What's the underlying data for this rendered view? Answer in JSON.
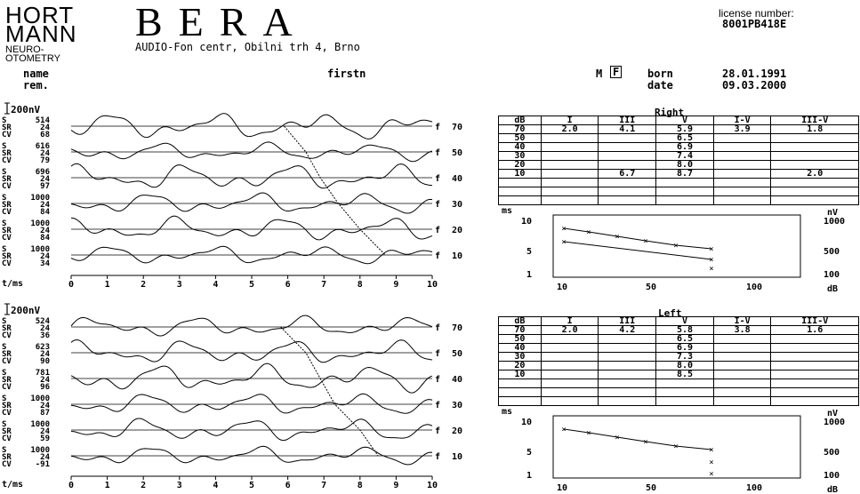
{
  "header": {
    "logo_line1": "HORT",
    "logo_line2": "MANN",
    "logo_line3": "NEURO-",
    "logo_line4": "OTOMETRY",
    "title": "BERA",
    "address": "AUDIO-Fon centr, Obilni trh 4, Brno",
    "license_label": "license number:",
    "license_number": "8001PB418E"
  },
  "patient": {
    "name_label": "name",
    "rem_label": "rem.",
    "name_value": "firstn",
    "sex_m": "M",
    "sex_f": "F",
    "born_label": "born",
    "born_value": "28.01.1991",
    "date_label": "date",
    "date_value": "09.03.2000"
  },
  "right": {
    "panel_title": "Right",
    "scale_label": "200nV",
    "time_label": "t/ms",
    "x_ticks": [
      "0",
      "1",
      "2",
      "3",
      "4",
      "5",
      "6",
      "7",
      "8",
      "9",
      "10"
    ],
    "traces": [
      {
        "s": "514",
        "sr": "24",
        "cv": "68",
        "level": "70"
      },
      {
        "s": "616",
        "sr": "24",
        "cv": "79",
        "level": "50"
      },
      {
        "s": "696",
        "sr": "24",
        "cv": "97",
        "level": "40"
      },
      {
        "s": "1000",
        "sr": "24",
        "cv": "84",
        "level": "30"
      },
      {
        "s": "1000",
        "sr": "24",
        "cv": "84",
        "level": "20"
      },
      {
        "s": "1000",
        "sr": "24",
        "cv": "34",
        "level": "10"
      }
    ],
    "table_headers": [
      "dB",
      "I",
      "III",
      "V",
      "I-V",
      "III-V"
    ],
    "table_rows": [
      [
        "70",
        "2.0",
        "4.1",
        "5.9",
        "3.9",
        "1.8"
      ],
      [
        "50",
        "",
        "",
        "6.5",
        "",
        ""
      ],
      [
        "40",
        "",
        "",
        "6.9",
        "",
        ""
      ],
      [
        "30",
        "",
        "",
        "7.4",
        "",
        ""
      ],
      [
        "20",
        "",
        "",
        "8.0",
        "",
        ""
      ],
      [
        "10",
        "",
        "6.7",
        "8.7",
        "",
        "2.0"
      ],
      [
        "",
        "",
        "",
        "",
        "",
        ""
      ],
      [
        "",
        "",
        "",
        "",
        "",
        ""
      ],
      [
        "",
        "",
        "",
        "",
        "",
        ""
      ]
    ],
    "graph": {
      "ms_label": "ms",
      "nv_label": "nV",
      "db_label": "dB",
      "y_left_ticks": [
        "10",
        "5",
        "1"
      ],
      "y_right_ticks": [
        "1000",
        "500",
        "100"
      ],
      "x_ticks": [
        "10",
        "50",
        "100"
      ]
    }
  },
  "left": {
    "panel_title": "Left",
    "scale_label": "200nV",
    "time_label": "t/ms",
    "x_ticks": [
      "0",
      "1",
      "2",
      "3",
      "4",
      "5",
      "6",
      "7",
      "8",
      "9",
      "10"
    ],
    "traces": [
      {
        "s": "524",
        "sr": "24",
        "cv": "36",
        "level": "70"
      },
      {
        "s": "623",
        "sr": "24",
        "cv": "90",
        "level": "50"
      },
      {
        "s": "781",
        "sr": "24",
        "cv": "96",
        "level": "40"
      },
      {
        "s": "1000",
        "sr": "24",
        "cv": "87",
        "level": "30"
      },
      {
        "s": "1000",
        "sr": "24",
        "cv": "59",
        "level": "20"
      },
      {
        "s": "1000",
        "sr": "24",
        "cv": "-91",
        "level": "10"
      }
    ],
    "table_headers": [
      "dB",
      "I",
      "III",
      "V",
      "I-V",
      "III-V"
    ],
    "table_rows": [
      [
        "70",
        "2.0",
        "4.2",
        "5.8",
        "3.8",
        "1.6"
      ],
      [
        "50",
        "",
        "",
        "6.5",
        "",
        ""
      ],
      [
        "40",
        "",
        "",
        "6.9",
        "",
        ""
      ],
      [
        "30",
        "",
        "",
        "7.3",
        "",
        ""
      ],
      [
        "20",
        "",
        "",
        "8.0",
        "",
        ""
      ],
      [
        "10",
        "",
        "",
        "8.5",
        "",
        ""
      ],
      [
        "",
        "",
        "",
        "",
        "",
        ""
      ],
      [
        "",
        "",
        "",
        "",
        "",
        ""
      ],
      [
        "",
        "",
        "",
        "",
        "",
        ""
      ]
    ],
    "graph": {
      "ms_label": "ms",
      "nv_label": "nV",
      "db_label": "dB",
      "y_left_ticks": [
        "10",
        "5",
        "1"
      ],
      "y_right_ticks": [
        "1000",
        "500",
        "100"
      ],
      "x_ticks": [
        "10",
        "50",
        "100"
      ]
    }
  },
  "trace_suffix": "f",
  "labels": {
    "s": "S",
    "sr": "SR",
    "cv": "CV"
  }
}
